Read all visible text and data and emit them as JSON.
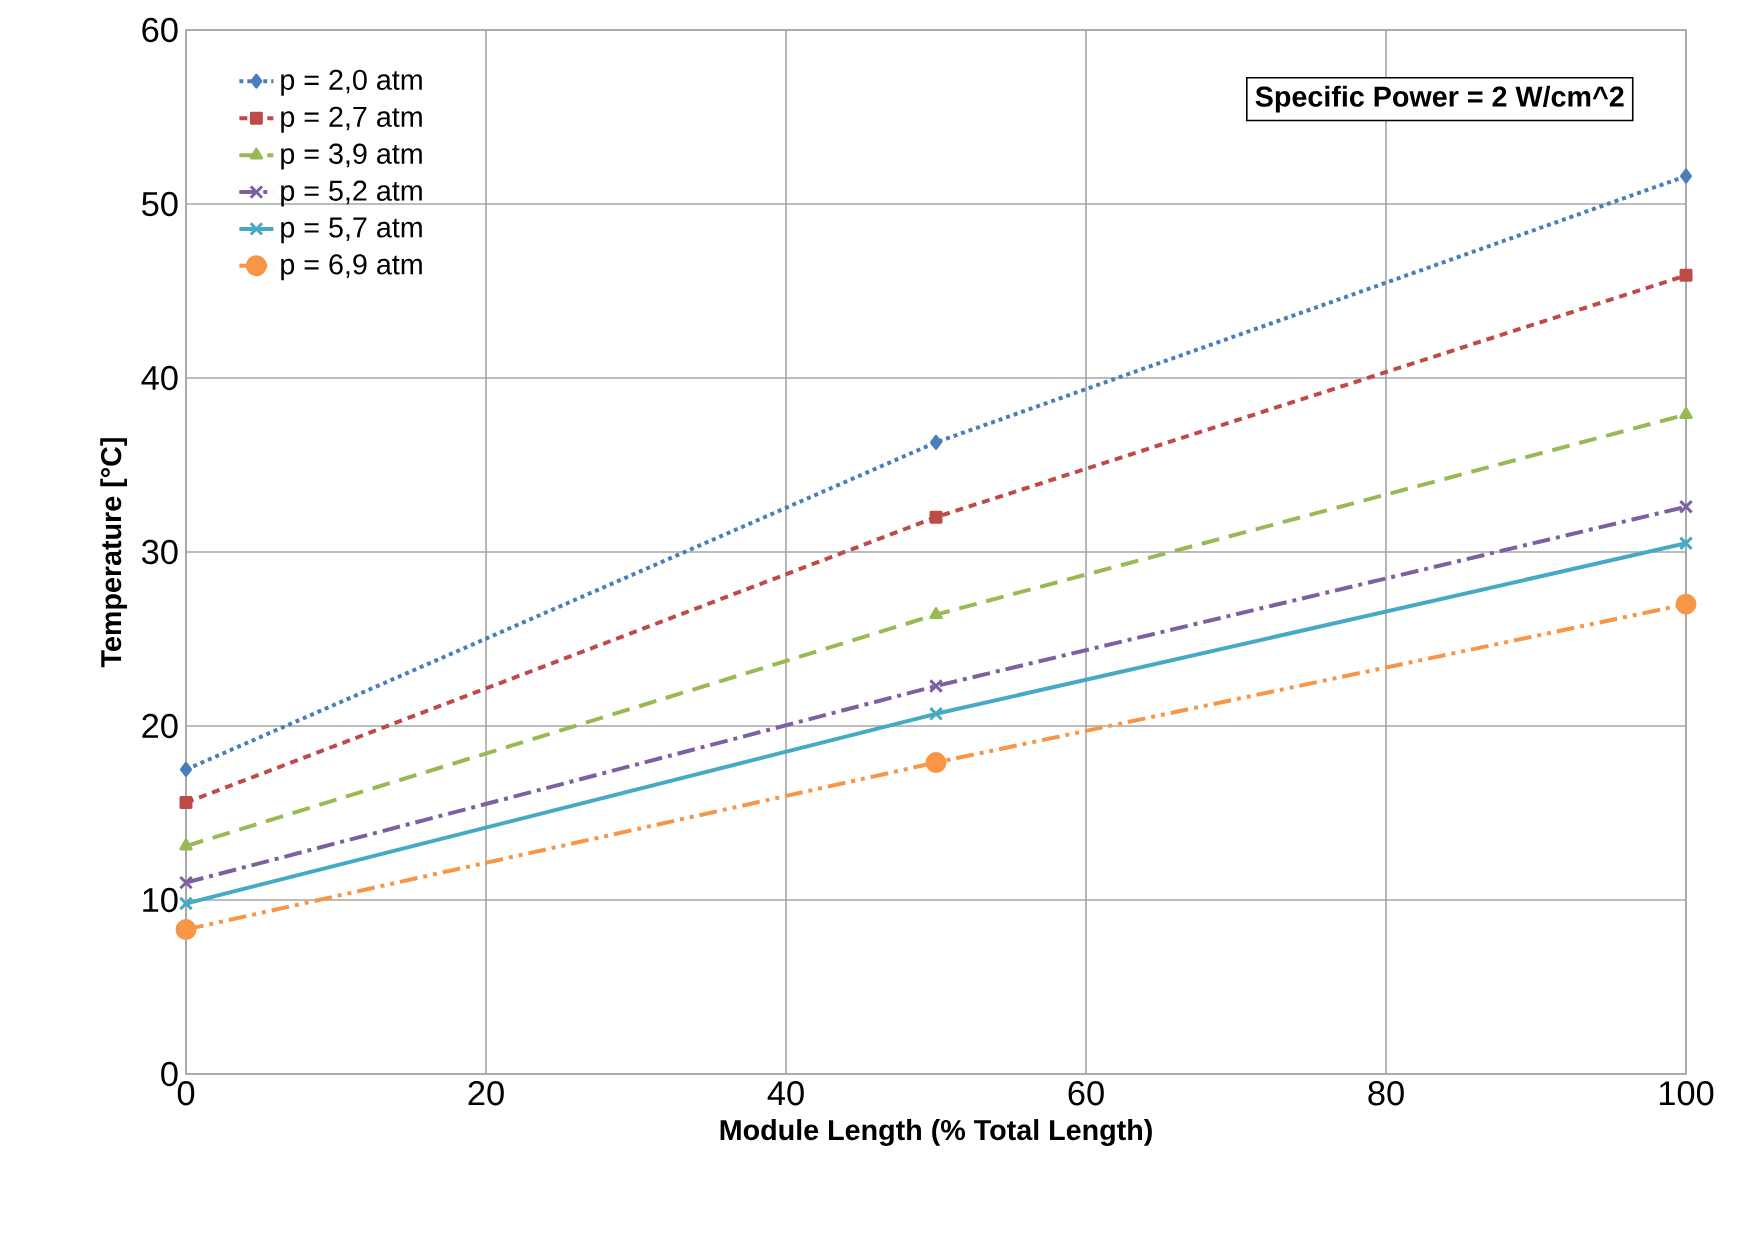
{
  "chart_data": {
    "type": "line",
    "xlabel": "Module Length (% Total Length)",
    "ylabel": "Temperature [°C]",
    "x": [
      0,
      50,
      100
    ],
    "series": [
      {
        "name": "p = 2,0 atm",
        "color": "#4a7ebb",
        "line_style": "dotted",
        "marker": "diamond",
        "values": [
          17.5,
          36.3,
          51.6
        ]
      },
      {
        "name": "p = 2,7 atm",
        "color": "#be4b48",
        "line_style": "dashed",
        "marker": "square",
        "values": [
          15.6,
          32.0,
          45.9
        ]
      },
      {
        "name": "p = 3,9 atm",
        "color": "#98b954",
        "line_style": "longdashed",
        "marker": "triangle",
        "values": [
          13.1,
          26.4,
          37.9
        ]
      },
      {
        "name": "p = 5,2 atm",
        "color": "#7d60a0",
        "line_style": "dashdot",
        "marker": "cross",
        "values": [
          11.0,
          22.3,
          32.6
        ]
      },
      {
        "name": "p = 5,7 atm",
        "color": "#46aac5",
        "line_style": "solid",
        "marker": "cross",
        "values": [
          9.8,
          20.7,
          30.5
        ]
      },
      {
        "name": "p = 6,9 atm",
        "color": "#f79646",
        "line_style": "dashdotdot",
        "marker": "circle",
        "values": [
          8.3,
          17.9,
          27.0
        ]
      }
    ],
    "annotations": [
      "Specific Power = 2 W/cm^2"
    ],
    "xlim": [
      0,
      100
    ],
    "xticks": [
      0,
      20,
      40,
      60,
      80,
      100
    ],
    "ylim": [
      0,
      60
    ],
    "yticks": [
      0,
      10,
      20,
      30,
      40,
      50,
      60
    ],
    "grid": true,
    "legend": "top left"
  }
}
